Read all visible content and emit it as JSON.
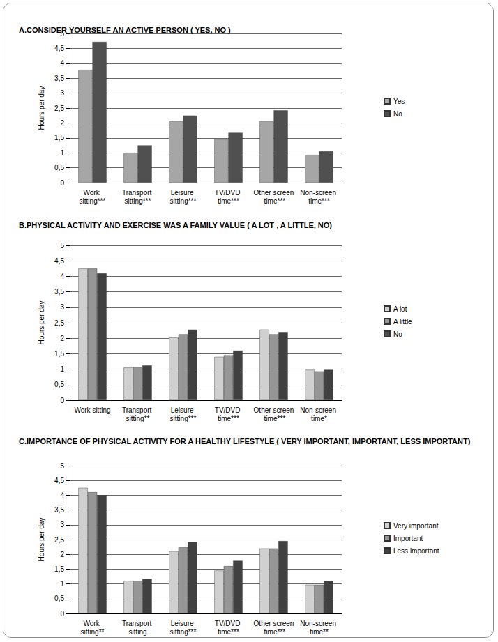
{
  "chart_data": [
    {
      "type": "bar",
      "title": "A.CONSIDER YOURSELF AN ACTIVE PERSON ( YES, NO )",
      "ylabel": "Hours per day",
      "categories": [
        "Work sitting***",
        "Transport sitting***",
        "Leisure sitting***",
        "TV/DVD time***",
        "Other screen time***",
        "Non-screen time***"
      ],
      "series": [
        {
          "name": "Yes",
          "color": "#a6a6a6",
          "values": [
            3.78,
            1.0,
            2.05,
            1.45,
            2.05,
            0.93
          ]
        },
        {
          "name": "No",
          "color": "#505050",
          "values": [
            4.72,
            1.25,
            2.25,
            1.67,
            2.42,
            1.05
          ]
        }
      ],
      "ylim": [
        0,
        5
      ],
      "yticks": [
        0,
        {
          "value": 0.5,
          "label": "0,5"
        },
        1,
        {
          "value": 1.5,
          "label": "1,5"
        },
        2,
        {
          "value": 2.5,
          "label": "2,5"
        },
        3,
        {
          "value": 3.5,
          "label": "3,5"
        },
        4,
        {
          "value": 4.5,
          "label": "4,5"
        },
        5
      ],
      "grid": true,
      "legend": "right"
    },
    {
      "type": "bar",
      "title": "B.PHYSICAL ACTIVITY AND EXERCISE WAS A FAMILY VALUE ( A LOT , A LITTLE, NO)",
      "ylabel": "Hours per day",
      "categories": [
        "Work sitting",
        "Transport sitting**",
        "Leisure sitting***",
        "TV/DVD time***",
        "Other screen time***",
        "Non-screen time*"
      ],
      "series": [
        {
          "name": "A lot",
          "color": "#d0d0d0",
          "values": [
            4.25,
            1.05,
            2.02,
            1.4,
            2.28,
            0.98
          ]
        },
        {
          "name": "A little",
          "color": "#969696",
          "values": [
            4.25,
            1.07,
            2.13,
            1.45,
            2.13,
            0.93
          ]
        },
        {
          "name": "No",
          "color": "#404040",
          "values": [
            4.1,
            1.12,
            2.28,
            1.6,
            2.2,
            0.98
          ]
        }
      ],
      "ylim": [
        0,
        5
      ],
      "yticks": [
        0,
        {
          "value": 0.5,
          "label": "0,5"
        },
        1,
        {
          "value": 1.5,
          "label": "1,5"
        },
        2,
        {
          "value": 2.5,
          "label": "2,5"
        },
        3,
        {
          "value": 3.5,
          "label": "3,5"
        },
        4,
        {
          "value": 4.5,
          "label": "4,5"
        },
        5
      ],
      "grid": true,
      "legend": "right"
    },
    {
      "type": "bar",
      "title": "C.IMPORTANCE OF PHYSICAL ACTIVITY FOR A HEALTHY LIFESTYLE ( VERY IMPORTANT, IMPORTANT, LESS IMPORTANT)",
      "ylabel": "Hours per day",
      "categories": [
        "Work sitting**",
        "Transport sitting",
        "Leisure sitting***",
        "TV/DVD time***",
        "Other screen time***",
        "Non-screen time**"
      ],
      "series": [
        {
          "name": "Very important",
          "color": "#d0d0d0",
          "values": [
            4.25,
            1.1,
            2.1,
            1.45,
            2.2,
            0.97
          ]
        },
        {
          "name": "Important",
          "color": "#969696",
          "values": [
            4.1,
            1.1,
            2.25,
            1.6,
            2.2,
            0.97
          ]
        },
        {
          "name": "Less important",
          "color": "#404040",
          "values": [
            4.0,
            1.17,
            2.42,
            1.78,
            2.45,
            1.1
          ]
        }
      ],
      "ylim": [
        0,
        5
      ],
      "yticks": [
        0,
        {
          "value": 0.5,
          "label": "0,5"
        },
        1,
        {
          "value": 1.5,
          "label": "1,5"
        },
        2,
        {
          "value": 2.5,
          "label": "2,5"
        },
        3,
        {
          "value": 3.5,
          "label": "3,5"
        },
        4,
        {
          "value": 4.5,
          "label": "4,5"
        },
        5
      ],
      "grid": true,
      "legend": "right"
    }
  ]
}
